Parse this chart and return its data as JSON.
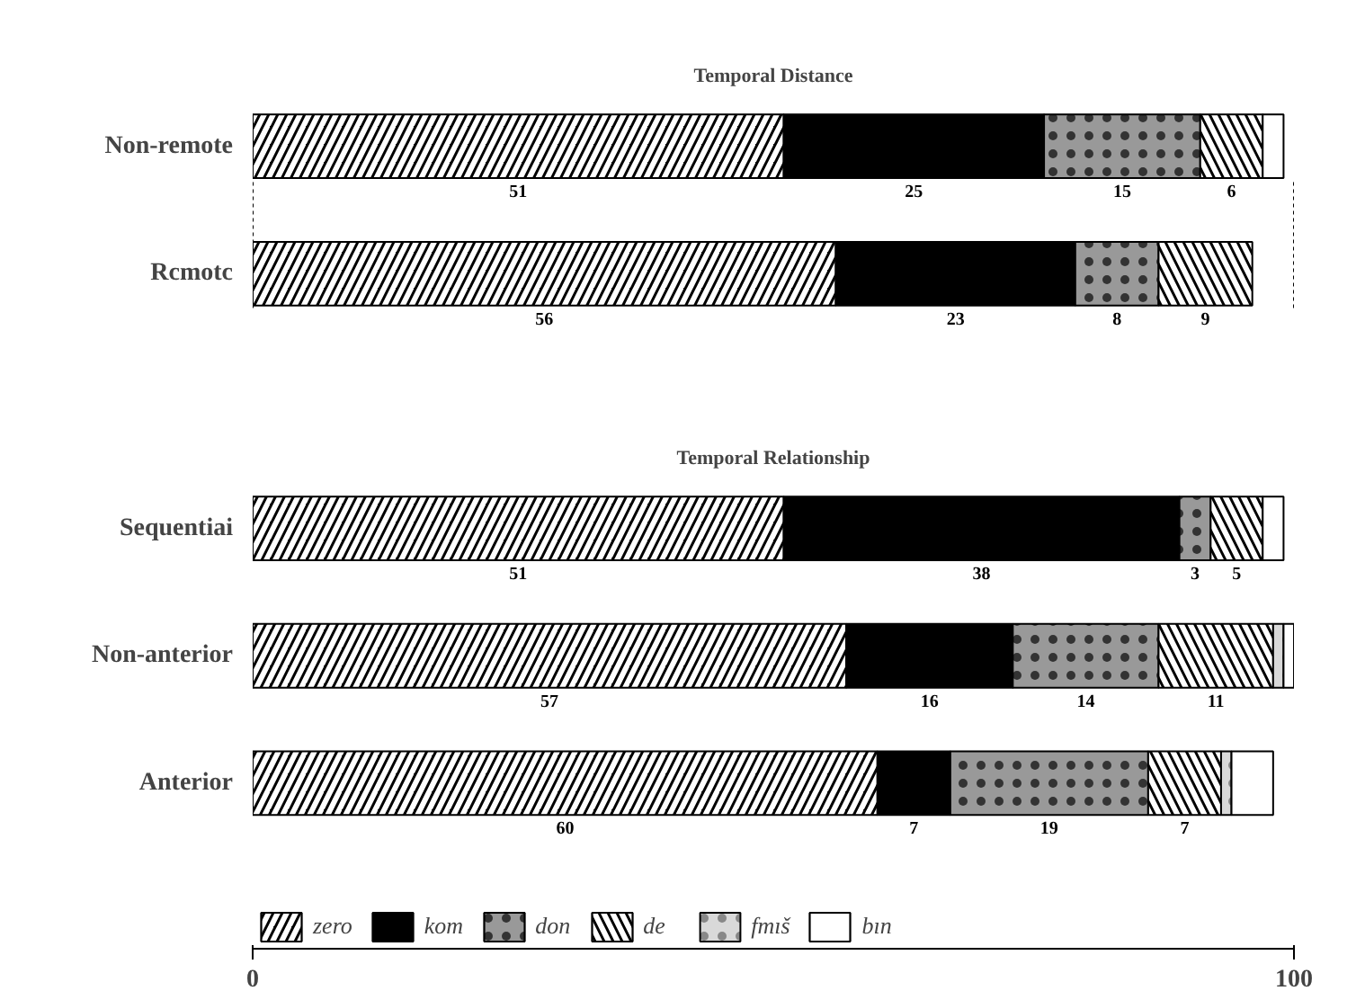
{
  "chart_data": [
    {
      "type": "bar",
      "title": "Temporal Distance",
      "orientation": "horizontal",
      "stacked": true,
      "categories": [
        "Non-remote",
        "Rcmotc"
      ],
      "xlim": [
        0,
        100
      ],
      "xticks": [
        0,
        100
      ],
      "tick_labels": "y",
      "grid": false,
      "legend": "bottom",
      "series": [
        {
          "name": "zero",
          "color": "#000000",
          "values": [
            51,
            56
          ],
          "value_labels": [
            "51",
            "56"
          ]
        },
        {
          "name": "kom",
          "color": "#000000",
          "values": [
            25,
            23
          ],
          "value_labels": [
            "25",
            "23"
          ]
        },
        {
          "name": "don",
          "color": "#999999",
          "values": [
            15,
            8
          ],
          "value_labels": [
            "15",
            "8"
          ]
        },
        {
          "name": "de",
          "color": "#000000",
          "values": [
            6,
            9
          ],
          "value_labels": [
            "6",
            "9"
          ]
        },
        {
          "name": "bın",
          "color": "#ffffff",
          "values": [
            2,
            null
          ],
          "value_labels": [
            null,
            null
          ]
        }
      ]
    },
    {
      "type": "bar",
      "title": "Temporal Relationship",
      "orientation": "horizontal",
      "stacked": true,
      "categories": [
        "Sequentiai",
        "Non-anterior",
        "Anterior"
      ],
      "xlim": [
        0,
        100
      ],
      "xticks": [
        0,
        100
      ],
      "grid": false,
      "legend": "bottom",
      "series": [
        {
          "name": "zero",
          "color": "#000000",
          "values": [
            51,
            57,
            60
          ],
          "value_labels": [
            "51",
            "57",
            "60"
          ]
        },
        {
          "name": "kom",
          "color": "#000000",
          "values": [
            38,
            16,
            7
          ],
          "value_labels": [
            "38",
            "16",
            "7"
          ]
        },
        {
          "name": "don",
          "color": "#999999",
          "values": [
            3,
            14,
            19
          ],
          "value_labels": [
            "3",
            "14",
            "19"
          ]
        },
        {
          "name": "de",
          "color": "#000000",
          "values": [
            5,
            11,
            7
          ],
          "value_labels": [
            "5",
            "11",
            "7"
          ]
        },
        {
          "name": "fmıš",
          "color": "#d9d9d9",
          "values": [
            null,
            1,
            1
          ],
          "value_labels": [
            null,
            null,
            null
          ]
        },
        {
          "name": "bın",
          "color": "#ffffff",
          "values": [
            2,
            1,
            4
          ],
          "value_labels": [
            null,
            null,
            null
          ]
        }
      ]
    }
  ]
}
